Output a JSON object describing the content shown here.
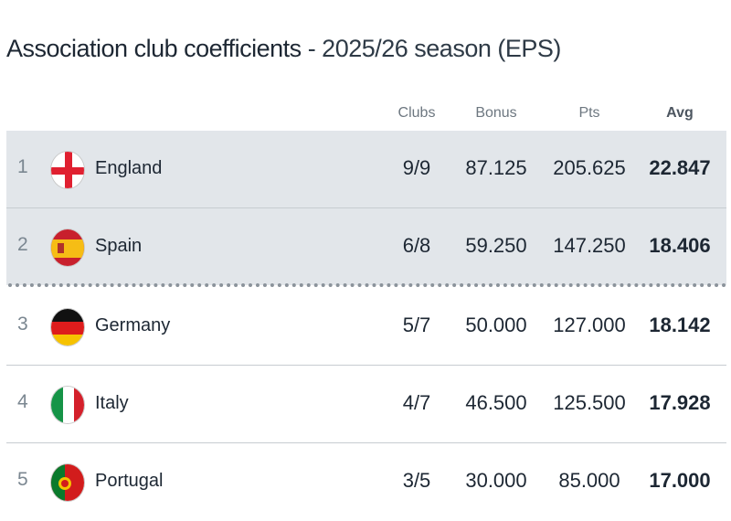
{
  "title": {
    "main": "Association club coefficients",
    "season": " - 2025/26 season (EPS)"
  },
  "columns": {
    "clubs": "Clubs",
    "bonus": "Bonus",
    "pts": "Pts",
    "avg": "Avg"
  },
  "rows": [
    {
      "rank": "1",
      "country": "England",
      "flag": "england-flag",
      "clubs": "9/9",
      "bonus": "87.125",
      "pts": "205.625",
      "avg": "22.847",
      "highlighted": true
    },
    {
      "rank": "2",
      "country": "Spain",
      "flag": "spain-flag",
      "clubs": "6/8",
      "bonus": "59.250",
      "pts": "147.250",
      "avg": "18.406",
      "highlighted": true
    },
    {
      "rank": "3",
      "country": "Germany",
      "flag": "germany-flag",
      "clubs": "5/7",
      "bonus": "50.000",
      "pts": "127.000",
      "avg": "18.142",
      "highlighted": false
    },
    {
      "rank": "4",
      "country": "Italy",
      "flag": "italy-flag",
      "clubs": "4/7",
      "bonus": "46.500",
      "pts": "125.500",
      "avg": "17.928",
      "highlighted": false
    },
    {
      "rank": "5",
      "country": "Portugal",
      "flag": "portugal-flag",
      "clubs": "3/5",
      "bonus": "30.000",
      "pts": "85.000",
      "avg": "17.000",
      "highlighted": false
    }
  ],
  "colors": {
    "highlight_bg": "#e2e6ea",
    "text": "#1d2733"
  }
}
